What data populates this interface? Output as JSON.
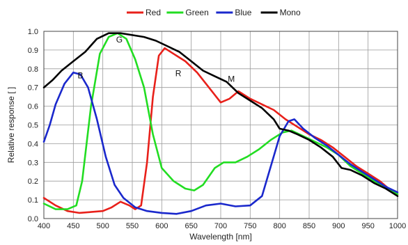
{
  "chart_data": {
    "type": "line",
    "title": "",
    "xlabel": "Wavelength [nm]",
    "ylabel": "Relative response [ ]",
    "xlim": [
      400,
      1000
    ],
    "ylim": [
      0,
      1.0
    ],
    "x_ticks": [
      400,
      450,
      500,
      550,
      600,
      650,
      700,
      750,
      800,
      850,
      900,
      950,
      1000
    ],
    "y_ticks": [
      0.0,
      0.1,
      0.2,
      0.3,
      0.4,
      0.5,
      0.6,
      0.7,
      0.8,
      0.9,
      1.0
    ],
    "y_tick_labels": [
      "0.0",
      "0.1",
      "0.2",
      "0.3",
      "0.4",
      "0.5",
      "0.6",
      "0.7",
      "0.8",
      "0.9",
      "1.0"
    ],
    "grid": true,
    "legend_position": "top-center",
    "series": [
      {
        "name": "Red",
        "color": "#e8201a",
        "points": [
          [
            400,
            0.11
          ],
          [
            420,
            0.07
          ],
          [
            440,
            0.04
          ],
          [
            460,
            0.03
          ],
          [
            480,
            0.035
          ],
          [
            500,
            0.04
          ],
          [
            515,
            0.06
          ],
          [
            530,
            0.09
          ],
          [
            545,
            0.07
          ],
          [
            555,
            0.05
          ],
          [
            565,
            0.07
          ],
          [
            575,
            0.3
          ],
          [
            585,
            0.65
          ],
          [
            595,
            0.87
          ],
          [
            605,
            0.91
          ],
          [
            620,
            0.88
          ],
          [
            640,
            0.84
          ],
          [
            660,
            0.78
          ],
          [
            680,
            0.7
          ],
          [
            700,
            0.62
          ],
          [
            715,
            0.64
          ],
          [
            730,
            0.68
          ],
          [
            750,
            0.64
          ],
          [
            770,
            0.61
          ],
          [
            790,
            0.58
          ],
          [
            810,
            0.53
          ],
          [
            830,
            0.49
          ],
          [
            850,
            0.45
          ],
          [
            870,
            0.42
          ],
          [
            890,
            0.38
          ],
          [
            910,
            0.33
          ],
          [
            930,
            0.28
          ],
          [
            950,
            0.24
          ],
          [
            970,
            0.2
          ],
          [
            985,
            0.16
          ],
          [
            1000,
            0.13
          ]
        ]
      },
      {
        "name": "Green",
        "color": "#22dd22",
        "points": [
          [
            400,
            0.08
          ],
          [
            420,
            0.05
          ],
          [
            440,
            0.05
          ],
          [
            455,
            0.07
          ],
          [
            465,
            0.2
          ],
          [
            480,
            0.6
          ],
          [
            495,
            0.88
          ],
          [
            510,
            0.97
          ],
          [
            525,
            0.99
          ],
          [
            540,
            0.96
          ],
          [
            555,
            0.85
          ],
          [
            570,
            0.7
          ],
          [
            585,
            0.45
          ],
          [
            600,
            0.27
          ],
          [
            620,
            0.2
          ],
          [
            640,
            0.16
          ],
          [
            655,
            0.15
          ],
          [
            670,
            0.18
          ],
          [
            690,
            0.27
          ],
          [
            705,
            0.3
          ],
          [
            725,
            0.3
          ],
          [
            745,
            0.33
          ],
          [
            765,
            0.37
          ],
          [
            785,
            0.42
          ],
          [
            805,
            0.46
          ],
          [
            820,
            0.47
          ],
          [
            840,
            0.44
          ],
          [
            860,
            0.41
          ],
          [
            880,
            0.38
          ],
          [
            900,
            0.34
          ],
          [
            920,
            0.28
          ],
          [
            940,
            0.24
          ],
          [
            960,
            0.2
          ],
          [
            980,
            0.17
          ],
          [
            1000,
            0.13
          ]
        ]
      },
      {
        "name": "Blue",
        "color": "#1a28cc",
        "points": [
          [
            400,
            0.41
          ],
          [
            410,
            0.5
          ],
          [
            420,
            0.61
          ],
          [
            435,
            0.72
          ],
          [
            450,
            0.78
          ],
          [
            462,
            0.77
          ],
          [
            475,
            0.7
          ],
          [
            490,
            0.53
          ],
          [
            505,
            0.33
          ],
          [
            520,
            0.18
          ],
          [
            535,
            0.11
          ],
          [
            555,
            0.06
          ],
          [
            575,
            0.04
          ],
          [
            600,
            0.03
          ],
          [
            625,
            0.025
          ],
          [
            650,
            0.04
          ],
          [
            675,
            0.07
          ],
          [
            700,
            0.08
          ],
          [
            725,
            0.065
          ],
          [
            750,
            0.07
          ],
          [
            770,
            0.12
          ],
          [
            785,
            0.28
          ],
          [
            800,
            0.44
          ],
          [
            815,
            0.52
          ],
          [
            825,
            0.53
          ],
          [
            840,
            0.48
          ],
          [
            860,
            0.43
          ],
          [
            880,
            0.39
          ],
          [
            900,
            0.34
          ],
          [
            920,
            0.29
          ],
          [
            940,
            0.25
          ],
          [
            960,
            0.21
          ],
          [
            980,
            0.17
          ],
          [
            1000,
            0.14
          ]
        ]
      },
      {
        "name": "Mono",
        "color": "#000000",
        "points": [
          [
            400,
            0.7
          ],
          [
            415,
            0.74
          ],
          [
            430,
            0.79
          ],
          [
            450,
            0.84
          ],
          [
            470,
            0.89
          ],
          [
            490,
            0.96
          ],
          [
            510,
            0.99
          ],
          [
            530,
            0.99
          ],
          [
            550,
            0.98
          ],
          [
            570,
            0.97
          ],
          [
            590,
            0.95
          ],
          [
            610,
            0.92
          ],
          [
            630,
            0.89
          ],
          [
            650,
            0.84
          ],
          [
            670,
            0.79
          ],
          [
            690,
            0.76
          ],
          [
            710,
            0.73
          ],
          [
            730,
            0.67
          ],
          [
            750,
            0.63
          ],
          [
            770,
            0.59
          ],
          [
            790,
            0.53
          ],
          [
            800,
            0.48
          ],
          [
            815,
            0.47
          ],
          [
            830,
            0.45
          ],
          [
            850,
            0.42
          ],
          [
            870,
            0.38
          ],
          [
            890,
            0.33
          ],
          [
            905,
            0.27
          ],
          [
            920,
            0.26
          ],
          [
            940,
            0.23
          ],
          [
            960,
            0.19
          ],
          [
            980,
            0.16
          ],
          [
            1000,
            0.12
          ]
        ]
      }
    ],
    "annotations": [
      {
        "text": "B",
        "x": 462,
        "y": 0.75
      },
      {
        "text": "G",
        "x": 528,
        "y": 0.94
      },
      {
        "text": "R",
        "x": 628,
        "y": 0.76
      },
      {
        "text": "M",
        "x": 718,
        "y": 0.73
      }
    ]
  }
}
